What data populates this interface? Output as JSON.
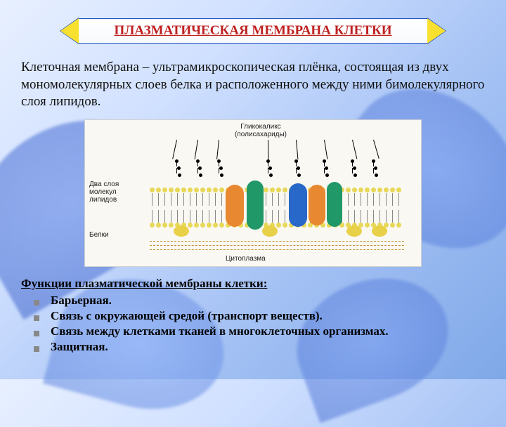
{
  "title": "ПЛАЗМАТИЧЕСКАЯ МЕМБРАНА КЛЕТКИ",
  "definition": "Клеточная мембрана – ультрамикроскопическая плёнка, состоящая из двух мономолекулярных слоев белка и расположенного между ними бимолекулярного слоя липидов.",
  "diagram": {
    "label_glycocalyx_1": "Гликокаликс",
    "label_glycocalyx_2": "(полисахариды)",
    "label_lipids": "Два слоя молекул липидов",
    "label_proteins": "Белки",
    "label_cytoplasm": "Цитоплазма",
    "colors": {
      "background": "#faf8f2",
      "lipid_head": "#e8d858",
      "lipid_tail": "#888888",
      "protein_orange": "#e88830",
      "protein_teal": "#209868",
      "protein_blue": "#2868c8",
      "protein_yellow": "#e8d048",
      "cyto_dash": "#c09030"
    }
  },
  "functions": {
    "heading": "Функции плазматической мембраны клетки:",
    "items": [
      "Барьерная.",
      "Связь с окружающей средой (транспорт веществ).",
      "Связь между клетками тканей в многоклеточных организмах.",
      "Защитная."
    ]
  },
  "style": {
    "title_color": "#c02020",
    "banner_border": "#2050c0",
    "banner_tri_fill": "#f8e030"
  }
}
